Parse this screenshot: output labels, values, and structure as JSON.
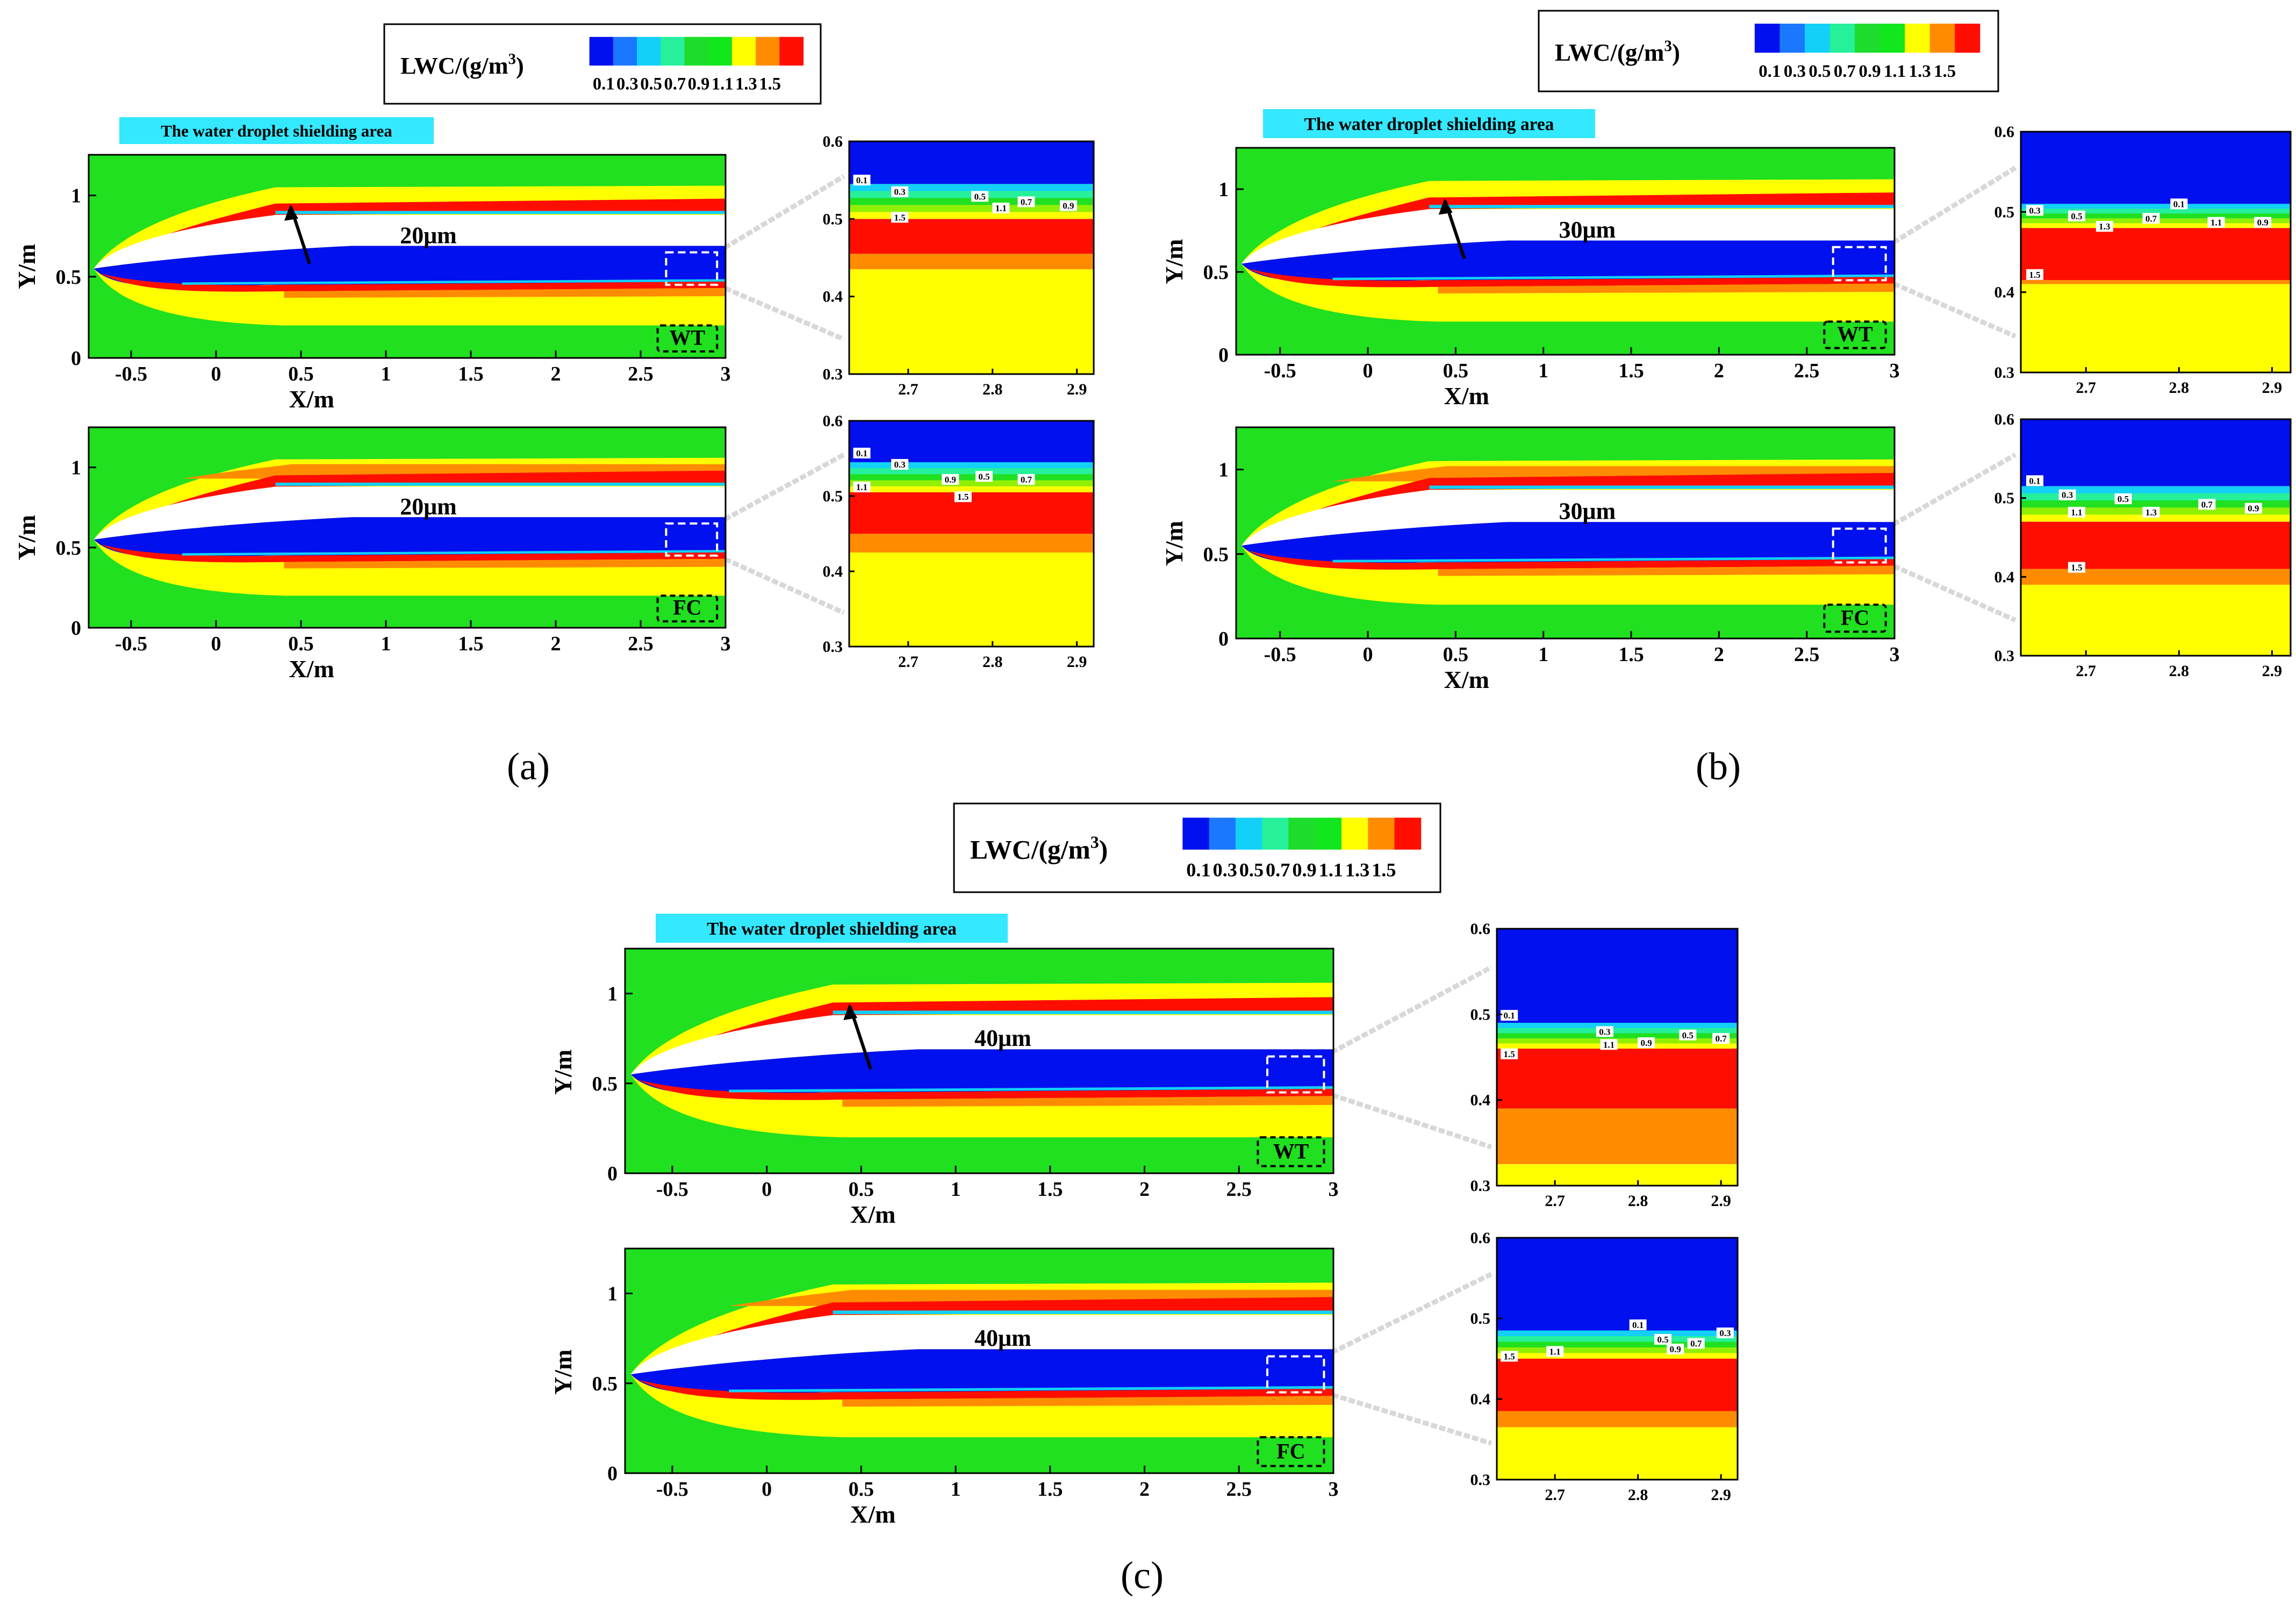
{
  "colorbar": {
    "title_prefix": "LWC/(g/m",
    "title_exp": "3",
    "title_suffix": ")",
    "ticks": [
      "0.1",
      "0.3",
      "0.5",
      "0.7",
      "0.9",
      "1.1",
      "1.3",
      "1.5"
    ],
    "colors": [
      "#0010ee",
      "#1a78ff",
      "#12d0f8",
      "#26f09a",
      "#1edc2c",
      "#12e61c",
      "#ffff00",
      "#ff8c00",
      "#ff0e00"
    ]
  },
  "palette": {
    "white": "#ffffff",
    "blue": "#0010ee",
    "cyan": "#12d0f8",
    "green": "#20e020",
    "yellow": "#ffff00",
    "orange": "#ff8c00",
    "red": "#ff0e00",
    "highlight": "#33e8ff",
    "frame": "#000000"
  },
  "shield_label": "The water droplet shielding area",
  "x_axis_label": "X/m",
  "y_axis_label": "Y/m",
  "main_x_ticks": [
    "-0.5",
    "0",
    "0.5",
    "1",
    "1.5",
    "2",
    "2.5",
    "3"
  ],
  "main_y_ticks": [
    "0",
    "0.5",
    "1"
  ],
  "zoom_x_ticks": [
    "2.7",
    "2.8",
    "2.9"
  ],
  "zoom_y_ticks": [
    "0.3",
    "0.4",
    "0.5",
    "0.6"
  ],
  "chart_data": [
    {
      "type": "contour",
      "panel": "(a)",
      "case": "WT",
      "diameter": "20μm",
      "variable": "LWC (g/m3)",
      "levels": [
        0.1,
        0.3,
        0.5,
        0.7,
        0.9,
        1.1,
        1.3,
        1.5
      ],
      "xlim": [
        -0.75,
        3
      ],
      "ylim": [
        0,
        1.25
      ],
      "zoom": {
        "xlim": [
          2.63,
          2.92
        ],
        "ylim": [
          0.3,
          0.6
        ],
        "bands": [
          {
            "lwc": 0.1,
            "from": 0.545,
            "to": 0.6
          },
          {
            "lwc": 0.5,
            "from": 0.5,
            "to": 0.545
          },
          {
            "lwc": 1.5,
            "from": 0.455,
            "to": 0.5
          },
          {
            "lwc": 1.3,
            "from": 0.435,
            "to": 0.455
          },
          {
            "lwc": 1.1,
            "from": 0.3,
            "to": 0.435
          }
        ],
        "labels": [
          {
            "t": "0.1",
            "x": 2.645,
            "y": 0.548
          },
          {
            "t": "0.3",
            "x": 2.69,
            "y": 0.533
          },
          {
            "t": "0.5",
            "x": 2.785,
            "y": 0.527
          },
          {
            "t": "1.1",
            "x": 2.81,
            "y": 0.512
          },
          {
            "t": "0.7",
            "x": 2.84,
            "y": 0.52
          },
          {
            "t": "0.9",
            "x": 2.89,
            "y": 0.515
          },
          {
            "t": "1.5",
            "x": 2.69,
            "y": 0.5
          }
        ]
      }
    },
    {
      "type": "contour",
      "panel": "(a)",
      "case": "FC",
      "diameter": "20μm",
      "variable": "LWC (g/m3)",
      "levels": [
        0.1,
        0.3,
        0.5,
        0.7,
        0.9,
        1.1,
        1.3,
        1.5
      ],
      "xlim": [
        -0.75,
        3
      ],
      "ylim": [
        0,
        1.25
      ],
      "zoom": {
        "xlim": [
          2.63,
          2.92
        ],
        "ylim": [
          0.3,
          0.6
        ],
        "bands": [
          {
            "lwc": 0.1,
            "from": 0.545,
            "to": 0.6
          },
          {
            "lwc": 0.5,
            "from": 0.505,
            "to": 0.545
          },
          {
            "lwc": 1.5,
            "from": 0.45,
            "to": 0.505
          },
          {
            "lwc": 1.3,
            "from": 0.425,
            "to": 0.45
          },
          {
            "lwc": 1.1,
            "from": 0.3,
            "to": 0.425
          }
        ],
        "labels": [
          {
            "t": "0.1",
            "x": 2.645,
            "y": 0.555
          },
          {
            "t": "0.3",
            "x": 2.69,
            "y": 0.54
          },
          {
            "t": "1.1",
            "x": 2.645,
            "y": 0.51
          },
          {
            "t": "0.9",
            "x": 2.75,
            "y": 0.52
          },
          {
            "t": "0.5",
            "x": 2.79,
            "y": 0.524
          },
          {
            "t": "0.7",
            "x": 2.84,
            "y": 0.52
          },
          {
            "t": "1.5",
            "x": 2.765,
            "y": 0.497
          }
        ]
      }
    },
    {
      "type": "contour",
      "panel": "(b)",
      "case": "WT",
      "diameter": "30μm",
      "variable": "LWC (g/m3)",
      "levels": [
        0.1,
        0.3,
        0.5,
        0.7,
        0.9,
        1.1,
        1.3,
        1.5
      ],
      "xlim": [
        -0.75,
        3
      ],
      "ylim": [
        0,
        1.25
      ],
      "zoom": {
        "xlim": [
          2.63,
          2.92
        ],
        "ylim": [
          0.3,
          0.6
        ],
        "bands": [
          {
            "lwc": 0.1,
            "from": 0.51,
            "to": 0.6
          },
          {
            "lwc": 0.5,
            "from": 0.48,
            "to": 0.51
          },
          {
            "lwc": 1.5,
            "from": 0.415,
            "to": 0.48
          },
          {
            "lwc": 1.3,
            "from": 0.41,
            "to": 0.415
          },
          {
            "lwc": 1.1,
            "from": 0.3,
            "to": 0.41
          }
        ],
        "labels": [
          {
            "t": "0.3",
            "x": 2.645,
            "y": 0.5
          },
          {
            "t": "0.1",
            "x": 2.8,
            "y": 0.508
          },
          {
            "t": "0.5",
            "x": 2.69,
            "y": 0.493
          },
          {
            "t": "1.3",
            "x": 2.72,
            "y": 0.48
          },
          {
            "t": "0.7",
            "x": 2.77,
            "y": 0.49
          },
          {
            "t": "1.1",
            "x": 2.84,
            "y": 0.485
          },
          {
            "t": "0.9",
            "x": 2.89,
            "y": 0.485
          },
          {
            "t": "1.5",
            "x": 2.645,
            "y": 0.42
          }
        ]
      }
    },
    {
      "type": "contour",
      "panel": "(b)",
      "case": "FC",
      "diameter": "30μm",
      "variable": "LWC (g/m3)",
      "levels": [
        0.1,
        0.3,
        0.5,
        0.7,
        0.9,
        1.1,
        1.3,
        1.5
      ],
      "xlim": [
        -0.75,
        3
      ],
      "ylim": [
        0,
        1.25
      ],
      "zoom": {
        "xlim": [
          2.63,
          2.92
        ],
        "ylim": [
          0.3,
          0.6
        ],
        "bands": [
          {
            "lwc": 0.1,
            "from": 0.515,
            "to": 0.6
          },
          {
            "lwc": 0.5,
            "from": 0.47,
            "to": 0.515
          },
          {
            "lwc": 1.5,
            "from": 0.41,
            "to": 0.47
          },
          {
            "lwc": 1.3,
            "from": 0.39,
            "to": 0.41
          },
          {
            "lwc": 1.1,
            "from": 0.3,
            "to": 0.39
          }
        ],
        "labels": [
          {
            "t": "0.1",
            "x": 2.645,
            "y": 0.52
          },
          {
            "t": "0.3",
            "x": 2.68,
            "y": 0.502
          },
          {
            "t": "1.1",
            "x": 2.69,
            "y": 0.48
          },
          {
            "t": "0.5",
            "x": 2.74,
            "y": 0.497
          },
          {
            "t": "1.3",
            "x": 2.77,
            "y": 0.48
          },
          {
            "t": "0.7",
            "x": 2.83,
            "y": 0.49
          },
          {
            "t": "0.9",
            "x": 2.88,
            "y": 0.485
          },
          {
            "t": "1.5",
            "x": 2.69,
            "y": 0.41
          }
        ]
      }
    },
    {
      "type": "contour",
      "panel": "(c)",
      "case": "WT",
      "diameter": "40μm",
      "variable": "LWC (g/m3)",
      "levels": [
        0.1,
        0.3,
        0.5,
        0.7,
        0.9,
        1.1,
        1.3,
        1.5
      ],
      "xlim": [
        -0.75,
        3
      ],
      "ylim": [
        0,
        1.25
      ],
      "zoom": {
        "xlim": [
          2.63,
          2.92
        ],
        "ylim": [
          0.3,
          0.6
        ],
        "bands": [
          {
            "lwc": 0.1,
            "from": 0.49,
            "to": 0.6
          },
          {
            "lwc": 0.5,
            "from": 0.46,
            "to": 0.49
          },
          {
            "lwc": 1.5,
            "from": 0.39,
            "to": 0.46
          },
          {
            "lwc": 1.3,
            "from": 0.325,
            "to": 0.39
          },
          {
            "lwc": 1.1,
            "from": 0.3,
            "to": 0.325
          }
        ],
        "labels": [
          {
            "t": "0.1",
            "x": 2.645,
            "y": 0.497
          },
          {
            "t": "0.3",
            "x": 2.76,
            "y": 0.478
          },
          {
            "t": "1.5",
            "x": 2.645,
            "y": 0.452
          },
          {
            "t": "1.1",
            "x": 2.765,
            "y": 0.463
          },
          {
            "t": "0.9",
            "x": 2.81,
            "y": 0.465
          },
          {
            "t": "0.5",
            "x": 2.86,
            "y": 0.474
          },
          {
            "t": "0.7",
            "x": 2.9,
            "y": 0.47
          }
        ]
      }
    },
    {
      "type": "contour",
      "panel": "(c)",
      "case": "FC",
      "diameter": "40μm",
      "variable": "LWC (g/m3)",
      "levels": [
        0.1,
        0.3,
        0.5,
        0.7,
        0.9,
        1.1,
        1.3,
        1.5
      ],
      "xlim": [
        -0.75,
        3
      ],
      "ylim": [
        0,
        1.25
      ],
      "zoom": {
        "xlim": [
          2.63,
          2.92
        ],
        "ylim": [
          0.3,
          0.6
        ],
        "bands": [
          {
            "lwc": 0.1,
            "from": 0.485,
            "to": 0.6
          },
          {
            "lwc": 0.5,
            "from": 0.45,
            "to": 0.485
          },
          {
            "lwc": 1.5,
            "from": 0.385,
            "to": 0.45
          },
          {
            "lwc": 1.3,
            "from": 0.365,
            "to": 0.385
          },
          {
            "lwc": 1.1,
            "from": 0.3,
            "to": 0.365
          }
        ],
        "labels": [
          {
            "t": "0.1",
            "x": 2.8,
            "y": 0.49
          },
          {
            "t": "0.3",
            "x": 2.905,
            "y": 0.48
          },
          {
            "t": "0.5",
            "x": 2.83,
            "y": 0.472
          },
          {
            "t": "0.7",
            "x": 2.87,
            "y": 0.467
          },
          {
            "t": "0.9",
            "x": 2.845,
            "y": 0.46
          },
          {
            "t": "1.5",
            "x": 2.645,
            "y": 0.451
          },
          {
            "t": "1.1",
            "x": 2.7,
            "y": 0.457
          }
        ]
      }
    }
  ],
  "panel_labels": [
    "(a)",
    "(b)",
    "(c)"
  ]
}
